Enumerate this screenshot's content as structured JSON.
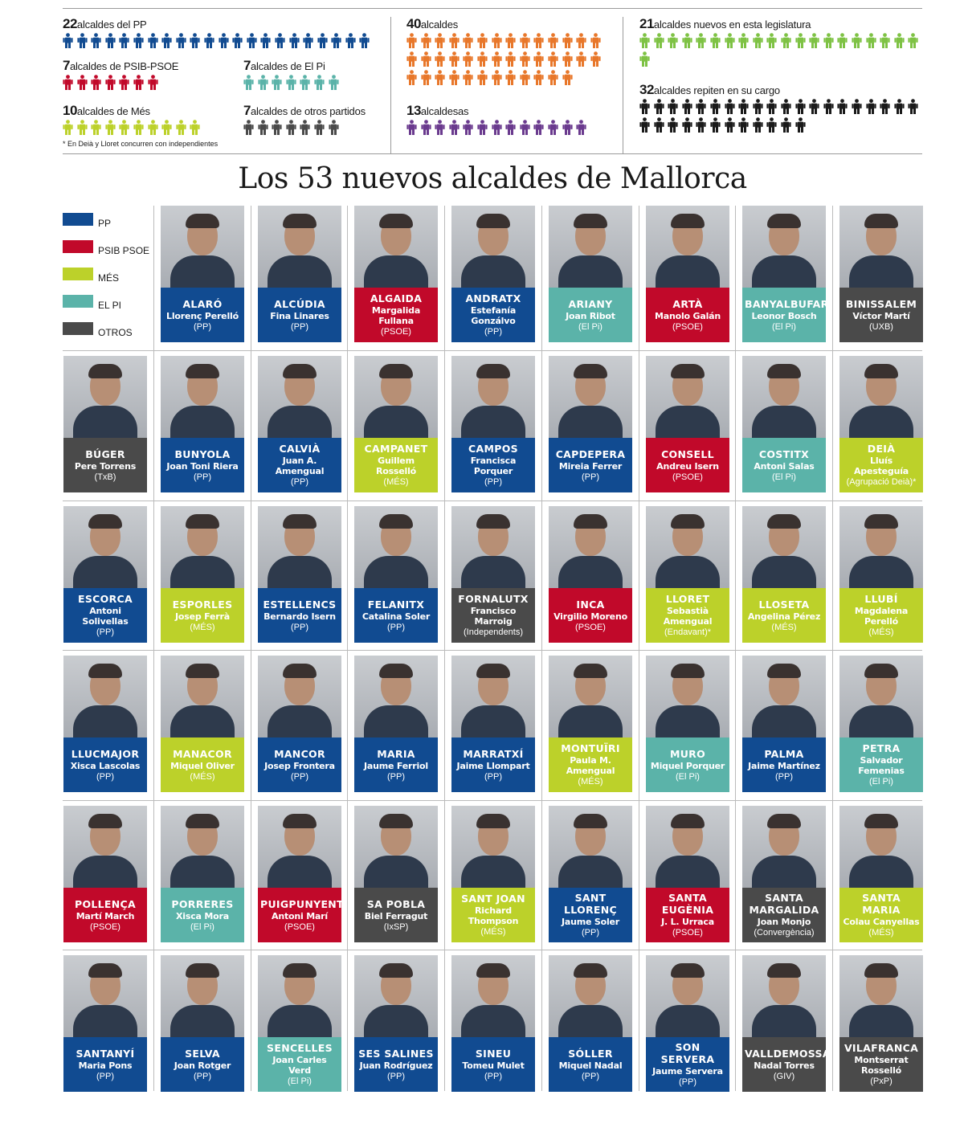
{
  "colors": {
    "PP": "#114b91",
    "PSOE": "#c1092a",
    "MES": "#bcd12a",
    "ELPI": "#5bb3a9",
    "OTROS": "#4a4a4a",
    "NUEVOS": "#7ec244",
    "ALCALDES": "#e8772a",
    "ALCALDESAS": "#6a3a8e",
    "REPITEN": "#1a1a1a"
  },
  "stats": {
    "pp": {
      "num": "22",
      "label": "alcaldes del PP",
      "count": 22
    },
    "psoe": {
      "num": "7",
      "label": "alcaldes de PSIB-PSOE",
      "count": 7
    },
    "elpi": {
      "num": "7",
      "label": "alcaldes de El Pi",
      "count": 7
    },
    "mes": {
      "num": "10",
      "label": "alcaldes de Més",
      "count": 10
    },
    "otros": {
      "num": "7",
      "label": "alcaldes de otros partidos",
      "count": 7
    },
    "footnote": "* En Deià y Lloret concurren con independientes",
    "alcaldes": {
      "num": "40",
      "label": "alcaldes",
      "count": 40
    },
    "alcaldesas": {
      "num": "13",
      "label": "alcaldesas",
      "count": 13
    },
    "nuevos": {
      "num": "21",
      "label": "alcaldes nuevos en esta legislatura",
      "count": 21
    },
    "repiten": {
      "num": "32",
      "label": "alcaldes repiten en su cargo",
      "count": 32
    }
  },
  "title": "Los 53 nuevos alcaldes de Mallorca",
  "legend": [
    {
      "key": "PP",
      "label": "PP"
    },
    {
      "key": "PSOE",
      "label": "PSIB PSOE"
    },
    {
      "key": "MES",
      "label": "MÉS"
    },
    {
      "key": "ELPI",
      "label": "EL PI"
    },
    {
      "key": "OTROS",
      "label": "OTROS"
    }
  ],
  "mayors": [
    {
      "town": "ALARÓ",
      "name": "Llorenç Perelló",
      "party": "(PP)",
      "key": "PP"
    },
    {
      "town": "ALCÚDIA",
      "name": "Fina Linares",
      "party": "(PP)",
      "key": "PP"
    },
    {
      "town": "ALGAIDA",
      "name": "Margalida Fullana",
      "party": "(PSOE)",
      "key": "PSOE"
    },
    {
      "town": "ANDRATX",
      "name": "Estefanía Gonzálvo",
      "party": "(PP)",
      "key": "PP"
    },
    {
      "town": "ARIANY",
      "name": "Joan Ribot",
      "party": "(El Pi)",
      "key": "ELPI"
    },
    {
      "town": "ARTÀ",
      "name": "Manolo Galán",
      "party": "(PSOE)",
      "key": "PSOE"
    },
    {
      "town": "BANYALBUFAR",
      "name": "Leonor Bosch",
      "party": "(El Pi)",
      "key": "ELPI"
    },
    {
      "town": "BINISSALEM",
      "name": "Víctor Martí",
      "party": "(UXB)",
      "key": "OTROS"
    },
    {
      "town": "BÚGER",
      "name": "Pere Torrens",
      "party": "(TxB)",
      "key": "OTROS"
    },
    {
      "town": "BUNYOLA",
      "name": "Joan Toni Riera",
      "party": "(PP)",
      "key": "PP"
    },
    {
      "town": "CALVIÀ",
      "name": "Juan A. Amengual",
      "party": "(PP)",
      "key": "PP"
    },
    {
      "town": "CAMPANET",
      "name": "Guillem Rosselló",
      "party": "(MÉS)",
      "key": "MES"
    },
    {
      "town": "CAMPOS",
      "name": "Francisca Porquer",
      "party": "(PP)",
      "key": "PP"
    },
    {
      "town": "CAPDEPERA",
      "name": "Mireia Ferrer",
      "party": "(PP)",
      "key": "PP"
    },
    {
      "town": "CONSELL",
      "name": "Andreu Isern",
      "party": "(PSOE)",
      "key": "PSOE"
    },
    {
      "town": "COSTITX",
      "name": "Antoni Salas",
      "party": "(El Pi)",
      "key": "ELPI"
    },
    {
      "town": "DEIÀ",
      "name": "Lluís Apesteguía",
      "party": "(Agrupació Deià)*",
      "key": "MES"
    },
    {
      "town": "ESCORCA",
      "name": "Antoni Solivellas",
      "party": "(PP)",
      "key": "PP"
    },
    {
      "town": "ESPORLES",
      "name": "Josep Ferrà",
      "party": "(MÉS)",
      "key": "MES"
    },
    {
      "town": "ESTELLENCS",
      "name": "Bernardo Isern",
      "party": "(PP)",
      "key": "PP"
    },
    {
      "town": "FELANITX",
      "name": "Catalina Soler",
      "party": "(PP)",
      "key": "PP"
    },
    {
      "town": "FORNALUTX",
      "name": "Francisco Marroig",
      "party": "(Independents)",
      "key": "OTROS"
    },
    {
      "town": "INCA",
      "name": "Virgilio Moreno",
      "party": "(PSOE)",
      "key": "PSOE"
    },
    {
      "town": "LLORET",
      "name": "Sebastià Amengual",
      "party": "(Endavant)*",
      "key": "MES"
    },
    {
      "town": "LLOSETA",
      "name": "Angelina Pérez",
      "party": "(MÉS)",
      "key": "MES"
    },
    {
      "town": "LLUBÍ",
      "name": "Magdalena Perelló",
      "party": "(MÉS)",
      "key": "MES"
    },
    {
      "town": "LLUCMAJOR",
      "name": "Xisca Lascolas",
      "party": "(PP)",
      "key": "PP"
    },
    {
      "town": "MANACOR",
      "name": "Miquel Oliver",
      "party": "(MÉS)",
      "key": "MES"
    },
    {
      "town": "MANCOR",
      "name": "Josep Frontera",
      "party": "(PP)",
      "key": "PP"
    },
    {
      "town": "MARIA",
      "name": "Jaume Ferriol",
      "party": "(PP)",
      "key": "PP"
    },
    {
      "town": "MARRATXÍ",
      "name": "Jaime Llompart",
      "party": "(PP)",
      "key": "PP"
    },
    {
      "town": "MONTUÏRI",
      "name": "Paula M. Amengual",
      "party": "(MÉS)",
      "key": "MES"
    },
    {
      "town": "MURO",
      "name": "Miquel Porquer",
      "party": "(El Pi)",
      "key": "ELPI"
    },
    {
      "town": "PALMA",
      "name": "Jaime Martínez",
      "party": "(PP)",
      "key": "PP"
    },
    {
      "town": "PETRA",
      "name": "Salvador Femenias",
      "party": "(El Pi)",
      "key": "ELPI"
    },
    {
      "town": "POLLENÇA",
      "name": "Martí March",
      "party": "(PSOE)",
      "key": "PSOE"
    },
    {
      "town": "PORRERES",
      "name": "Xisca Mora",
      "party": "(El Pi)",
      "key": "ELPI"
    },
    {
      "town": "PUIGPUNYENT",
      "name": "Antoni Marí",
      "party": "(PSOE)",
      "key": "PSOE"
    },
    {
      "town": "SA POBLA",
      "name": "Biel Ferragut",
      "party": "(IxSP)",
      "key": "OTROS"
    },
    {
      "town": "SANT JOAN",
      "name": "Richard Thompson",
      "party": "(MÉS)",
      "key": "MES"
    },
    {
      "town": "SANT LLORENÇ",
      "name": "Jaume Soler",
      "party": "(PP)",
      "key": "PP"
    },
    {
      "town": "SANTA EUGÈNIA",
      "name": "J. L. Urraca",
      "party": "(PSOE)",
      "key": "PSOE"
    },
    {
      "town": "SANTA MARGALIDA",
      "name": "Joan Monjo",
      "party": "(Convergència)",
      "key": "OTROS"
    },
    {
      "town": "SANTA MARIA",
      "name": "Colau Canyellas",
      "party": "(MÉS)",
      "key": "MES"
    },
    {
      "town": "SANTANYÍ",
      "name": "Maria Pons",
      "party": "(PP)",
      "key": "PP"
    },
    {
      "town": "SELVA",
      "name": "Joan Rotger",
      "party": "(PP)",
      "key": "PP"
    },
    {
      "town": "SENCELLES",
      "name": "Joan Carles Verd",
      "party": "(El Pi)",
      "key": "ELPI"
    },
    {
      "town": "SES SALINES",
      "name": "Juan Rodríguez",
      "party": "(PP)",
      "key": "PP"
    },
    {
      "town": "SINEU",
      "name": "Tomeu Mulet",
      "party": "(PP)",
      "key": "PP"
    },
    {
      "town": "SÓLLER",
      "name": "Miquel Nadal",
      "party": "(PP)",
      "key": "PP"
    },
    {
      "town": "SON SERVERA",
      "name": "Jaume Servera",
      "party": "(PP)",
      "key": "PP"
    },
    {
      "town": "VALLDEMOSSA",
      "name": "Nadal Torres",
      "party": "(GIV)",
      "key": "OTROS"
    },
    {
      "town": "VILAFRANCA",
      "name": "Montserrat Rosselló",
      "party": "(PxP)",
      "key": "OTROS"
    }
  ]
}
